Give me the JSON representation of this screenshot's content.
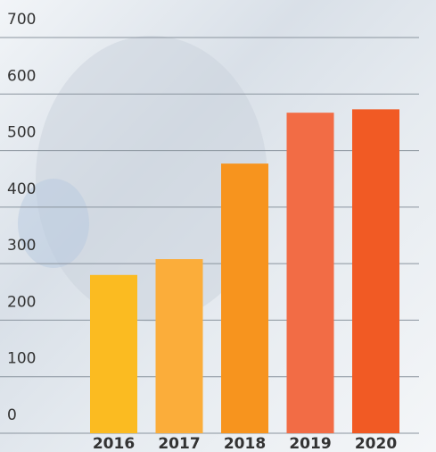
{
  "chart_data": {
    "type": "bar",
    "categories": [
      "2016",
      "2017",
      "2018",
      "2019",
      "2020"
    ],
    "values": [
      280,
      308,
      477,
      567,
      573
    ],
    "colors": [
      "#fbbb21",
      "#fbad3a",
      "#f7941e",
      "#f26c45",
      "#f15a24"
    ],
    "ylim": [
      0,
      700
    ],
    "yticks": [
      0,
      100,
      200,
      300,
      400,
      500,
      600,
      700
    ],
    "grid": true
  }
}
